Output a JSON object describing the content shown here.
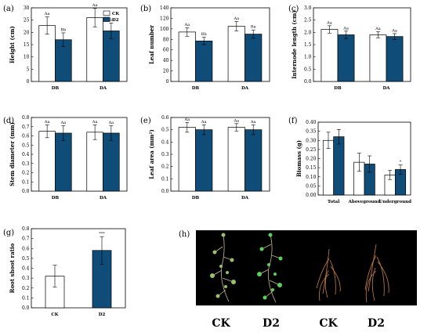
{
  "colors": {
    "ck": "#ffffff",
    "d2": "#0f4c78",
    "edge": "#000000"
  },
  "chart_data": [
    {
      "id": "a",
      "panel_label": "(a)",
      "type": "bar",
      "categories": [
        "DB",
        "DA"
      ],
      "series": [
        {
          "name": "CK",
          "values": [
            22.8,
            26.0
          ],
          "errors": [
            3.5,
            3.8
          ],
          "letters": [
            "Aa",
            "Aa"
          ]
        },
        {
          "name": "D2",
          "values": [
            17.0,
            20.6
          ],
          "errors": [
            2.8,
            3.2
          ],
          "letters": [
            "Bb",
            "Ba"
          ]
        }
      ],
      "ylabel": "Height (cm)",
      "ylim": [
        0,
        30
      ],
      "yticks": [
        0,
        5,
        10,
        15,
        20,
        25,
        30
      ],
      "legend": [
        "CK",
        "D2"
      ],
      "legend_position": "top-right"
    },
    {
      "id": "b",
      "panel_label": "(b)",
      "type": "bar",
      "categories": [
        "DB",
        "DA"
      ],
      "series": [
        {
          "name": "CK",
          "values": [
            94,
            105
          ],
          "errors": [
            8,
            9
          ],
          "letters": [
            "Aa",
            "Aa"
          ]
        },
        {
          "name": "D2",
          "values": [
            77,
            90
          ],
          "errors": [
            7,
            8
          ],
          "letters": [
            "Bb",
            "Ba"
          ]
        }
      ],
      "ylabel": "Leaf number",
      "ylim": [
        0,
        140
      ],
      "yticks": [
        0,
        20,
        40,
        60,
        80,
        100,
        120,
        140
      ]
    },
    {
      "id": "c",
      "panel_label": "(c)",
      "type": "bar",
      "categories": [
        "DB",
        "DA"
      ],
      "series": [
        {
          "name": "CK",
          "values": [
            2.12,
            1.9
          ],
          "errors": [
            0.15,
            0.12
          ],
          "letters": [
            "Aa",
            "Aa"
          ]
        },
        {
          "name": "D2",
          "values": [
            1.9,
            1.83
          ],
          "errors": [
            0.15,
            0.12
          ],
          "letters": [
            "Aa",
            "Aa"
          ]
        }
      ],
      "ylabel": "Internode length (cm)",
      "ylim": [
        0,
        3.0
      ],
      "yticks": [
        0.0,
        0.5,
        1.0,
        1.5,
        2.0,
        2.5,
        3.0
      ]
    },
    {
      "id": "d",
      "panel_label": "(d)",
      "type": "bar",
      "categories": [
        "DB",
        "DA"
      ],
      "series": [
        {
          "name": "CK",
          "values": [
            0.65,
            0.64
          ],
          "errors": [
            0.07,
            0.08
          ],
          "letters": [
            "Aa",
            "Aa"
          ]
        },
        {
          "name": "D2",
          "values": [
            0.63,
            0.63
          ],
          "errors": [
            0.08,
            0.08
          ],
          "letters": [
            "Aa",
            "Aa"
          ]
        }
      ],
      "ylabel": "Stem diameter (mm)",
      "ylim": [
        0,
        0.8
      ],
      "yticks": [
        0.0,
        0.1,
        0.2,
        0.3,
        0.4,
        0.5,
        0.6,
        0.7,
        0.8
      ]
    },
    {
      "id": "e",
      "panel_label": "(e)",
      "type": "bar",
      "categories": [
        "DB",
        "DA"
      ],
      "series": [
        {
          "name": "CK",
          "values": [
            0.52,
            0.52
          ],
          "errors": [
            0.04,
            0.03
          ],
          "letters": [
            "Aa",
            "Aa"
          ]
        },
        {
          "name": "D2",
          "values": [
            0.5,
            0.5
          ],
          "errors": [
            0.04,
            0.04
          ],
          "letters": [
            "Aa",
            "Aa"
          ]
        }
      ],
      "ylabel": "Leaf area (mm²)",
      "ylim": [
        0,
        0.6
      ],
      "yticks": [
        0.0,
        0.1,
        0.2,
        0.3,
        0.4,
        0.5,
        0.6
      ]
    },
    {
      "id": "f",
      "panel_label": "(f)",
      "type": "bar",
      "categories": [
        "Total",
        "Aboveground",
        "Underground"
      ],
      "series": [
        {
          "name": "CK",
          "values": [
            0.3,
            0.18,
            0.11
          ],
          "errors": [
            0.045,
            0.05,
            0.025
          ],
          "letters": [
            "",
            "",
            ""
          ]
        },
        {
          "name": "D2",
          "values": [
            0.32,
            0.17,
            0.14
          ],
          "errors": [
            0.04,
            0.045,
            0.025
          ],
          "letters": [
            "",
            "",
            "*"
          ]
        }
      ],
      "ylabel": "Biomass (g)",
      "ylim": [
        0,
        0.4
      ],
      "yticks": [
        0.0,
        0.05,
        0.1,
        0.15,
        0.2,
        0.25,
        0.3,
        0.35,
        0.4
      ]
    },
    {
      "id": "g",
      "panel_label": "(g)",
      "type": "bar",
      "categories": [
        "CK",
        "D2"
      ],
      "series": [
        {
          "name": "Root shoot ratio",
          "values": [
            0.32,
            0.58
          ],
          "errors": [
            0.11,
            0.14
          ],
          "letters": [
            "",
            "***"
          ],
          "colors": [
            "#ffffff",
            "#0f4c78"
          ]
        }
      ],
      "ylabel": "Root shoot ratio",
      "ylim": [
        0,
        0.8
      ],
      "yticks": [
        0.0,
        0.1,
        0.2,
        0.3,
        0.4,
        0.5,
        0.6,
        0.7,
        0.8
      ]
    }
  ],
  "photo": {
    "panel_label": "(h)",
    "labels": [
      "CK",
      "D2",
      "CK",
      "D2"
    ]
  }
}
